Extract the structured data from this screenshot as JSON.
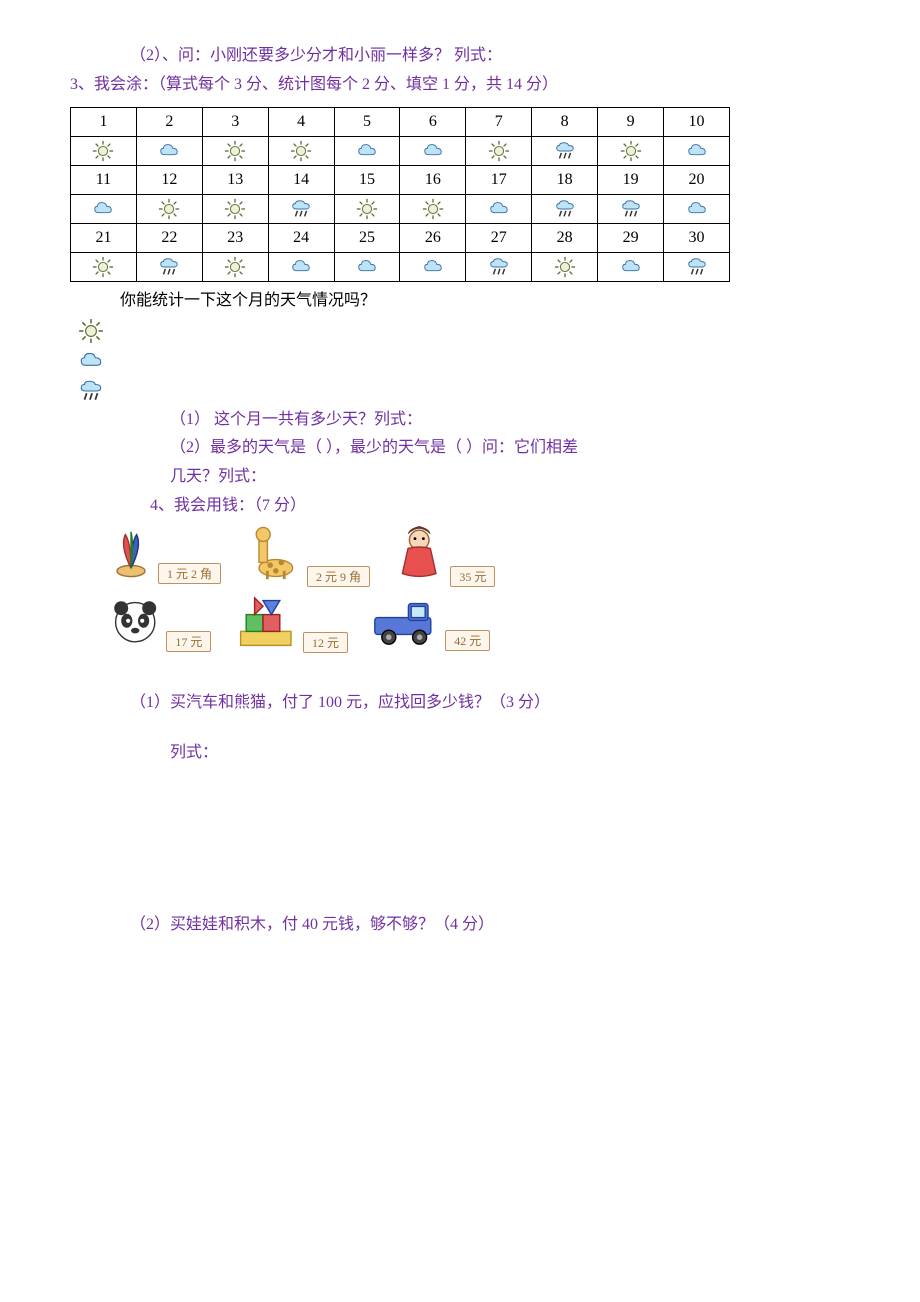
{
  "q2b": "（2）、问：小刚还要多少分才和小丽一样多？  列式：",
  "q3_title": "3、我会涂：（算式每个 3 分、统计图每个 2 分、填空 1 分，共 14 分）",
  "weather_table": {
    "days": [
      "1",
      "2",
      "3",
      "4",
      "5",
      "6",
      "7",
      "8",
      "9",
      "10",
      "11",
      "12",
      "13",
      "14",
      "15",
      "16",
      "17",
      "18",
      "19",
      "20",
      "21",
      "22",
      "23",
      "24",
      "25",
      "26",
      "27",
      "28",
      "29",
      "30"
    ],
    "icons": [
      "sun",
      "cloud",
      "sun",
      "sun",
      "cloud",
      "cloud",
      "sun",
      "rain",
      "sun",
      "cloud",
      "cloud",
      "sun",
      "sun",
      "rain",
      "sun",
      "sun",
      "cloud",
      "rain",
      "rain",
      "cloud",
      "sun",
      "rain",
      "sun",
      "cloud",
      "cloud",
      "cloud",
      "rain",
      "sun",
      "cloud",
      "rain"
    ]
  },
  "q3_sub": "你能统计一下这个月的天气情况吗？",
  "legend": [
    "sun",
    "cloud",
    "rain"
  ],
  "q3_1": "（1）    这个月一共有多少天？列式：",
  "q3_2a": "（2）最多的天气是（       ），最少的天气是（       ）问：它们相差",
  "q3_2b": "几天？列式：",
  "q4_title": "4、我会用钱：（7 分）",
  "shop_row1": [
    {
      "icon": "feather",
      "price": "1 元 2 角"
    },
    {
      "icon": "giraffe",
      "price": "2 元 9 角"
    },
    {
      "icon": "doll",
      "price": "35 元"
    }
  ],
  "shop_row2": [
    {
      "icon": "panda",
      "price": "17 元"
    },
    {
      "icon": "blocks",
      "price": "12 元"
    },
    {
      "icon": "truck",
      "price": "42 元"
    }
  ],
  "q4_1": "（1）买汽车和熊猫，付了 100 元，应找回多少钱？（3 分）",
  "q4_list": "列式：",
  "q4_2": "（2）买娃娃和积木，付 40 元钱，够不够？（4 分）",
  "colors": {
    "purple": "#7030a0",
    "sun_fill": "#f0f0d8",
    "sun_stroke": "#556b2f",
    "cloud_fill": "#bde4f4",
    "cloud_stroke": "#3a6ea5",
    "rain_stroke": "#333333"
  }
}
